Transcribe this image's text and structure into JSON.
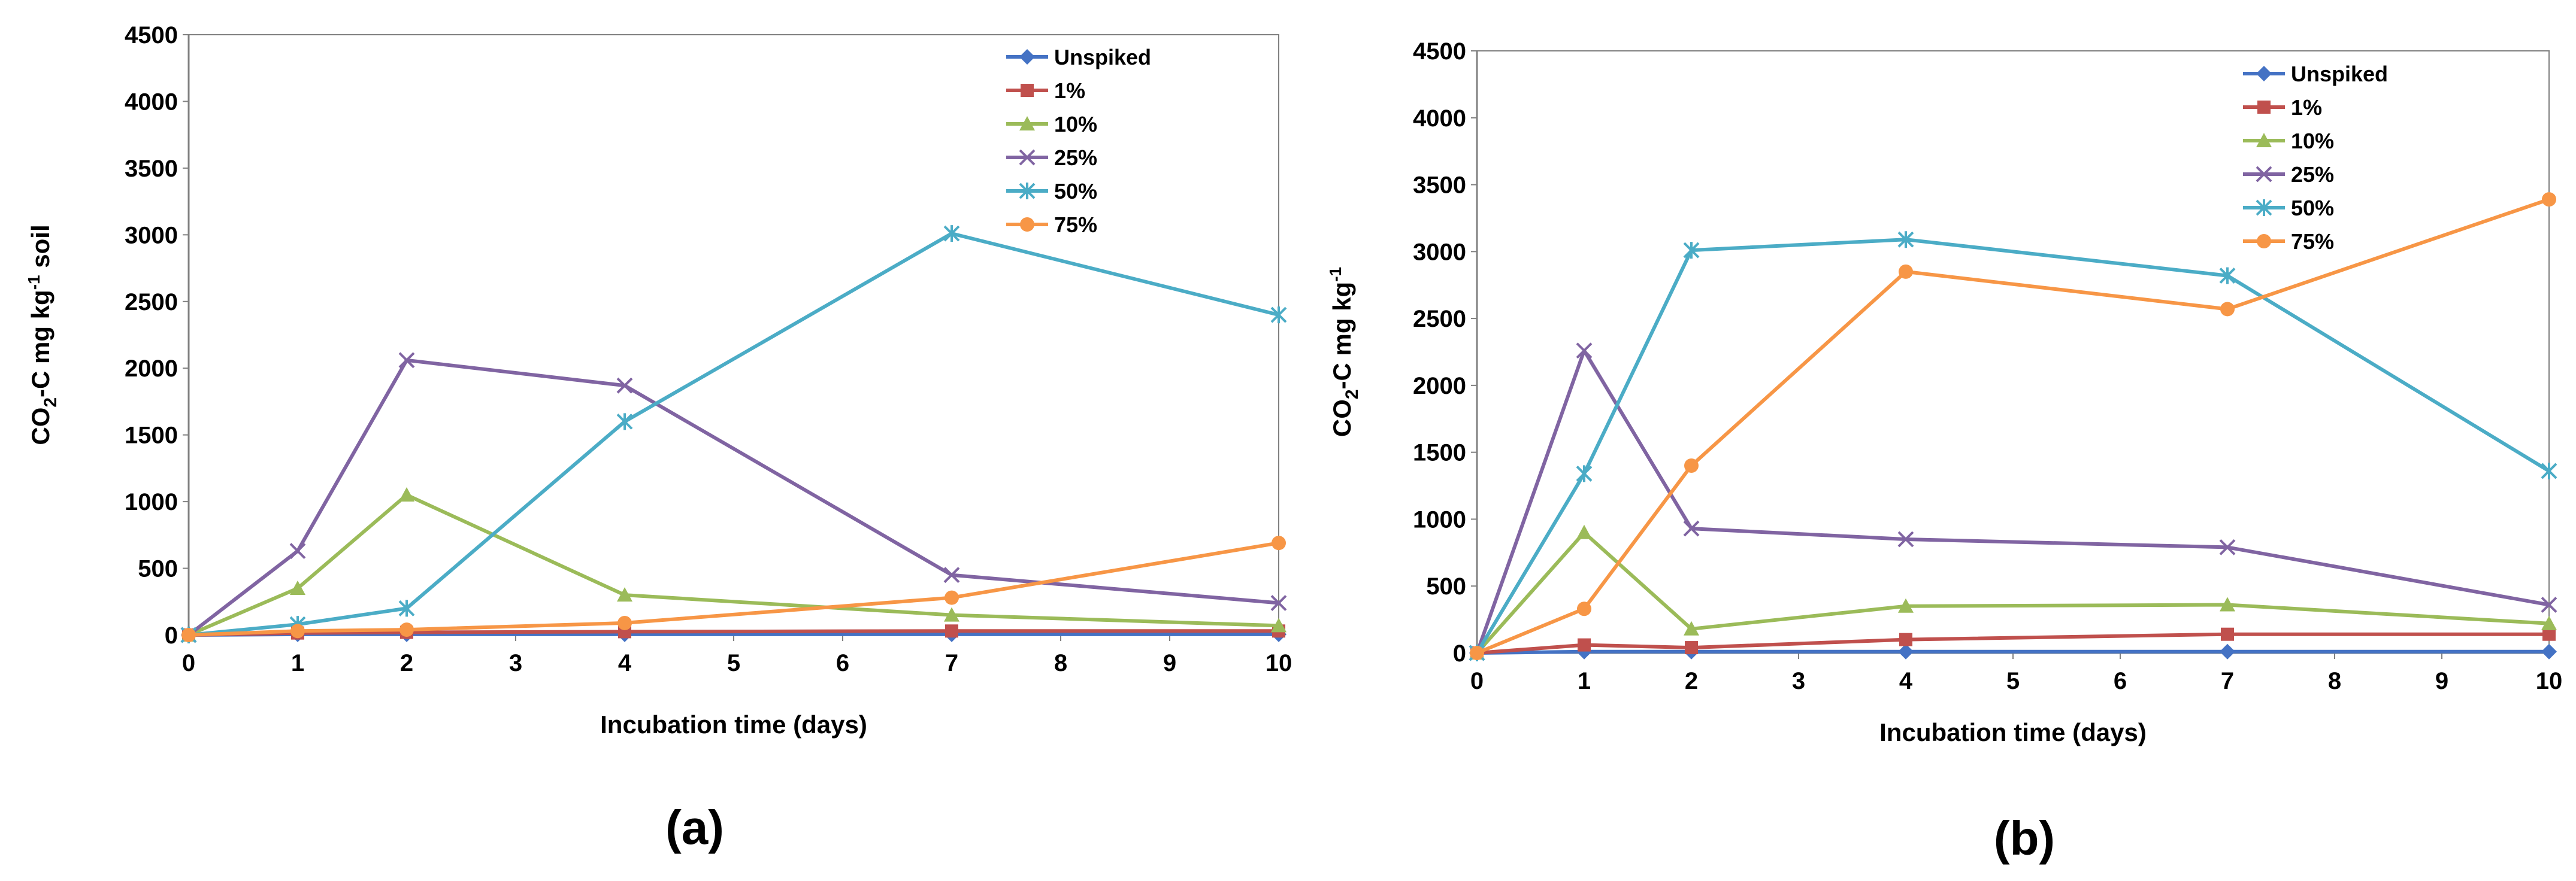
{
  "series_styles": [
    {
      "name": "Unspiked",
      "color": "#4472C4",
      "marker": "diamond"
    },
    {
      "name": "1%",
      "color": "#C0504D",
      "marker": "square"
    },
    {
      "name": "10%",
      "color": "#9BBB59",
      "marker": "triangle"
    },
    {
      "name": "25%",
      "color": "#8064A2",
      "marker": "x"
    },
    {
      "name": "50%",
      "color": "#4BACC6",
      "marker": "star"
    },
    {
      "name": "75%",
      "color": "#F79646",
      "marker": "circle"
    }
  ],
  "chart_data": [
    {
      "type": "line",
      "panel_label": "(a)",
      "title": "",
      "xlabel": "Incubation time (days)",
      "ylabel": {
        "prefix": "CO",
        "sub": "2",
        "mid": "-C mg kg",
        "sup": "-1",
        "suffix": " soil"
      },
      "xlim": [
        0,
        10
      ],
      "ylim": [
        0,
        4500
      ],
      "xticks": [
        0,
        1,
        2,
        3,
        4,
        5,
        6,
        7,
        8,
        9,
        10
      ],
      "yticks": [
        0,
        500,
        1000,
        1500,
        2000,
        2500,
        3000,
        3500,
        4000,
        4500
      ],
      "x": [
        0,
        1,
        2,
        4,
        7,
        10
      ],
      "legend_position": "top-right",
      "series": [
        {
          "name": "Unspiked",
          "values": [
            0,
            5,
            5,
            5,
            5,
            5
          ]
        },
        {
          "name": "1%",
          "values": [
            0,
            15,
            20,
            25,
            30,
            30
          ]
        },
        {
          "name": "10%",
          "values": [
            0,
            350,
            1050,
            300,
            150,
            70
          ]
        },
        {
          "name": "25%",
          "values": [
            0,
            630,
            2060,
            1870,
            450,
            240
          ]
        },
        {
          "name": "50%",
          "values": [
            0,
            80,
            200,
            1600,
            3010,
            2400
          ]
        },
        {
          "name": "75%",
          "values": [
            0,
            30,
            40,
            90,
            280,
            690
          ]
        }
      ]
    },
    {
      "type": "line",
      "panel_label": "(b)",
      "title": "",
      "xlabel": "Incubation time (days)",
      "ylabel": {
        "prefix": "CO",
        "sub": "2",
        "mid": "-C mg kg",
        "sup": "-1",
        "suffix": ""
      },
      "xlim": [
        0,
        10
      ],
      "ylim": [
        0,
        4500
      ],
      "xticks": [
        0,
        1,
        2,
        3,
        4,
        5,
        6,
        7,
        8,
        9,
        10
      ],
      "yticks": [
        0,
        500,
        1000,
        1500,
        2000,
        2500,
        3000,
        3500,
        4000,
        4500
      ],
      "x": [
        0,
        1,
        2,
        4,
        7,
        10
      ],
      "legend_position": "top-right",
      "series": [
        {
          "name": "Unspiked",
          "values": [
            0,
            10,
            10,
            10,
            10,
            10
          ]
        },
        {
          "name": "1%",
          "values": [
            0,
            60,
            40,
            100,
            140,
            140
          ]
        },
        {
          "name": "10%",
          "values": [
            0,
            900,
            180,
            350,
            360,
            220
          ]
        },
        {
          "name": "25%",
          "values": [
            0,
            2260,
            930,
            850,
            790,
            360
          ]
        },
        {
          "name": "50%",
          "values": [
            0,
            1340,
            3010,
            3090,
            2820,
            1360
          ]
        },
        {
          "name": "75%",
          "values": [
            0,
            330,
            1400,
            2850,
            2570,
            3390
          ]
        }
      ]
    }
  ]
}
